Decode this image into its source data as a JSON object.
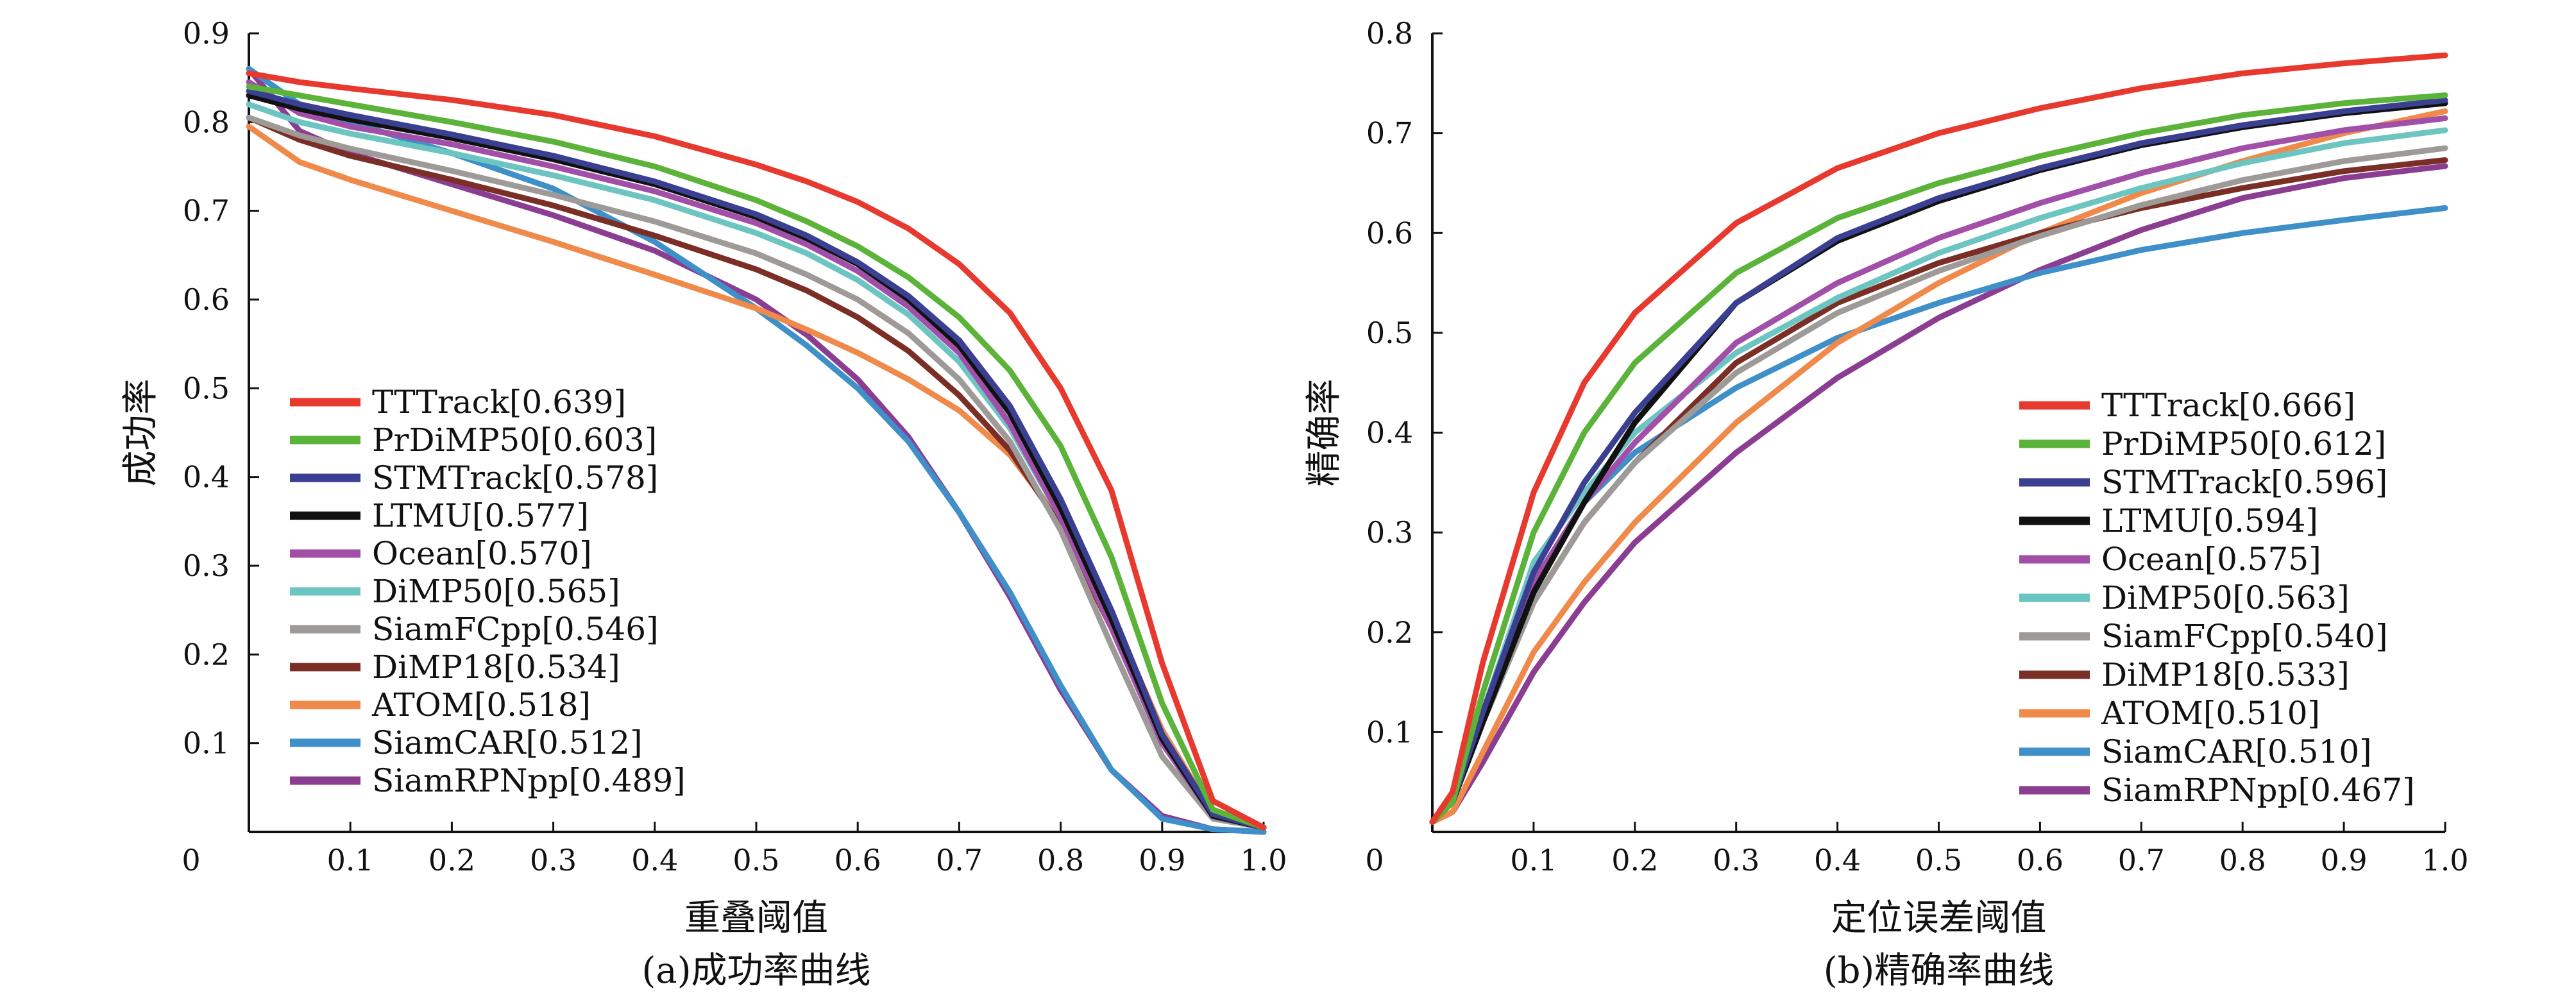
{
  "figure": {
    "panels": [
      {
        "caption": "(a)成功率曲线"
      },
      {
        "caption": "(b)精确率曲线"
      }
    ]
  },
  "chart_data": [
    {
      "type": "line",
      "title": "",
      "caption": "(a)成功率曲线",
      "xlabel": "重叠阈值",
      "ylabel": "成功率",
      "xlim": [
        0,
        1.0
      ],
      "ylim": [
        0,
        0.9
      ],
      "origin_label": "0",
      "xticks": [
        0.1,
        0.2,
        0.3,
        0.4,
        0.5,
        0.6,
        0.7,
        0.8,
        0.9,
        1.0
      ],
      "xtick_labels": [
        "0.1",
        "0.2",
        "0.3",
        "0.4",
        "0.5",
        "0.6",
        "0.7",
        "0.8",
        "0.9",
        "1.0"
      ],
      "yticks": [
        0.1,
        0.2,
        0.3,
        0.4,
        0.5,
        0.6,
        0.7,
        0.8,
        0.9
      ],
      "ytick_labels": [
        "0.1",
        "0.2",
        "0.3",
        "0.4",
        "0.5",
        "0.6",
        "0.7",
        "0.8",
        "0.9"
      ],
      "grid": false,
      "legend_position": "lower-left",
      "series": [
        {
          "name": "TTTrack[0.639]",
          "color": "#e8392f",
          "x": [
            0,
            0.05,
            0.1,
            0.2,
            0.3,
            0.4,
            0.5,
            0.55,
            0.6,
            0.65,
            0.7,
            0.75,
            0.8,
            0.85,
            0.9,
            0.95,
            1.0
          ],
          "y": [
            0.855,
            0.845,
            0.838,
            0.825,
            0.808,
            0.784,
            0.752,
            0.733,
            0.71,
            0.68,
            0.64,
            0.585,
            0.5,
            0.385,
            0.19,
            0.035,
            0.005
          ]
        },
        {
          "name": "PrDiMP50[0.603]",
          "color": "#5bb33a",
          "x": [
            0,
            0.05,
            0.1,
            0.2,
            0.3,
            0.4,
            0.5,
            0.55,
            0.6,
            0.65,
            0.7,
            0.75,
            0.8,
            0.85,
            0.9,
            0.95,
            1.0
          ],
          "y": [
            0.84,
            0.83,
            0.82,
            0.8,
            0.778,
            0.75,
            0.712,
            0.688,
            0.66,
            0.625,
            0.58,
            0.52,
            0.435,
            0.31,
            0.145,
            0.025,
            0.005
          ]
        },
        {
          "name": "STMTrack[0.578]",
          "color": "#3a3f91",
          "x": [
            0,
            0.05,
            0.1,
            0.2,
            0.3,
            0.4,
            0.5,
            0.55,
            0.6,
            0.65,
            0.7,
            0.75,
            0.8,
            0.85,
            0.9,
            0.95,
            1.0
          ],
          "y": [
            0.835,
            0.82,
            0.808,
            0.786,
            0.762,
            0.733,
            0.696,
            0.672,
            0.642,
            0.604,
            0.554,
            0.48,
            0.375,
            0.25,
            0.11,
            0.02,
            0.005
          ]
        },
        {
          "name": "LTMU[0.577]",
          "color": "#111111",
          "x": [
            0,
            0.05,
            0.1,
            0.2,
            0.3,
            0.4,
            0.5,
            0.55,
            0.6,
            0.65,
            0.7,
            0.75,
            0.8,
            0.85,
            0.9,
            0.95,
            1.0
          ],
          "y": [
            0.83,
            0.815,
            0.803,
            0.782,
            0.758,
            0.73,
            0.693,
            0.669,
            0.64,
            0.6,
            0.548,
            0.472,
            0.365,
            0.24,
            0.105,
            0.018,
            0.005
          ]
        },
        {
          "name": "Ocean[0.570]",
          "color": "#a14fa8",
          "x": [
            0,
            0.05,
            0.1,
            0.2,
            0.3,
            0.4,
            0.5,
            0.55,
            0.6,
            0.65,
            0.7,
            0.75,
            0.8,
            0.85,
            0.9,
            0.95,
            1.0
          ],
          "y": [
            0.845,
            0.81,
            0.795,
            0.775,
            0.75,
            0.722,
            0.686,
            0.662,
            0.632,
            0.592,
            0.54,
            0.46,
            0.355,
            0.23,
            0.1,
            0.018,
            0.005
          ]
        },
        {
          "name": "DiMP50[0.565]",
          "color": "#6cc5c1",
          "x": [
            0,
            0.05,
            0.1,
            0.2,
            0.3,
            0.4,
            0.5,
            0.55,
            0.6,
            0.65,
            0.7,
            0.75,
            0.8,
            0.85,
            0.9,
            0.95,
            1.0
          ],
          "y": [
            0.82,
            0.8,
            0.787,
            0.765,
            0.74,
            0.712,
            0.675,
            0.652,
            0.622,
            0.583,
            0.53,
            0.455,
            0.355,
            0.23,
            0.1,
            0.018,
            0.005
          ]
        },
        {
          "name": "SiamFCpp[0.546]",
          "color": "#9e9a98",
          "x": [
            0,
            0.05,
            0.1,
            0.2,
            0.3,
            0.4,
            0.5,
            0.55,
            0.6,
            0.65,
            0.7,
            0.75,
            0.8,
            0.85,
            0.9,
            0.95,
            1.0
          ],
          "y": [
            0.805,
            0.785,
            0.77,
            0.745,
            0.718,
            0.688,
            0.652,
            0.628,
            0.6,
            0.562,
            0.51,
            0.44,
            0.34,
            0.21,
            0.085,
            0.015,
            0.005
          ]
        },
        {
          "name": "DiMP18[0.534]",
          "color": "#7a2e26",
          "x": [
            0,
            0.05,
            0.1,
            0.2,
            0.3,
            0.4,
            0.5,
            0.55,
            0.6,
            0.65,
            0.7,
            0.75,
            0.8,
            0.85,
            0.9,
            0.95,
            1.0
          ],
          "y": [
            0.805,
            0.78,
            0.762,
            0.735,
            0.706,
            0.672,
            0.634,
            0.61,
            0.58,
            0.542,
            0.492,
            0.43,
            0.345,
            0.23,
            0.105,
            0.02,
            0.005
          ]
        },
        {
          "name": "ATOM[0.518]",
          "color": "#f08a4b",
          "x": [
            0,
            0.05,
            0.1,
            0.2,
            0.3,
            0.4,
            0.5,
            0.55,
            0.6,
            0.65,
            0.7,
            0.75,
            0.8,
            0.85,
            0.9,
            0.95,
            1.0
          ],
          "y": [
            0.795,
            0.755,
            0.735,
            0.7,
            0.665,
            0.628,
            0.59,
            0.566,
            0.54,
            0.51,
            0.475,
            0.425,
            0.35,
            0.245,
            0.115,
            0.02,
            0.005
          ]
        },
        {
          "name": "SiamCAR[0.512]",
          "color": "#3f8fc9",
          "x": [
            0,
            0.05,
            0.1,
            0.2,
            0.3,
            0.4,
            0.5,
            0.55,
            0.6,
            0.65,
            0.7,
            0.75,
            0.8,
            0.85,
            0.9,
            0.95,
            1.0
          ],
          "y": [
            0.86,
            0.82,
            0.8,
            0.765,
            0.725,
            0.665,
            0.59,
            0.548,
            0.5,
            0.44,
            0.36,
            0.27,
            0.165,
            0.07,
            0.015,
            0.003,
            0.0
          ]
        },
        {
          "name": "SiamRPNpp[0.489]",
          "color": "#8b3d92",
          "x": [
            0,
            0.05,
            0.1,
            0.2,
            0.3,
            0.4,
            0.5,
            0.55,
            0.6,
            0.65,
            0.7,
            0.75,
            0.8,
            0.85,
            0.9,
            0.95,
            1.0
          ],
          "y": [
            0.86,
            0.79,
            0.765,
            0.73,
            0.695,
            0.655,
            0.6,
            0.56,
            0.51,
            0.445,
            0.36,
            0.265,
            0.16,
            0.07,
            0.018,
            0.003,
            0.0
          ]
        }
      ]
    },
    {
      "type": "line",
      "title": "",
      "caption": "(b)精确率曲线",
      "xlabel": "定位误差阈值",
      "ylabel": "精确率",
      "xlim": [
        0,
        1.0
      ],
      "ylim": [
        0,
        0.8
      ],
      "origin_label": "0",
      "xticks": [
        0.1,
        0.2,
        0.3,
        0.4,
        0.5,
        0.6,
        0.7,
        0.8,
        0.9,
        1.0
      ],
      "xtick_labels": [
        "0.1",
        "0.2",
        "0.3",
        "0.4",
        "0.5",
        "0.6",
        "0.7",
        "0.8",
        "0.9",
        "1.0"
      ],
      "yticks": [
        0.1,
        0.2,
        0.3,
        0.4,
        0.5,
        0.6,
        0.7,
        0.8
      ],
      "ytick_labels": [
        "0.1",
        "0.2",
        "0.3",
        "0.4",
        "0.5",
        "0.6",
        "0.7",
        "0.8"
      ],
      "grid": false,
      "legend_position": "lower-right",
      "series": [
        {
          "name": "TTTrack[0.666]",
          "color": "#e8392f",
          "x": [
            0,
            0.02,
            0.05,
            0.1,
            0.15,
            0.2,
            0.3,
            0.4,
            0.5,
            0.6,
            0.7,
            0.8,
            0.9,
            1.0
          ],
          "y": [
            0.01,
            0.04,
            0.17,
            0.34,
            0.45,
            0.52,
            0.61,
            0.665,
            0.7,
            0.725,
            0.745,
            0.76,
            0.77,
            0.778
          ]
        },
        {
          "name": "PrDiMP50[0.612]",
          "color": "#5bb33a",
          "x": [
            0,
            0.02,
            0.05,
            0.1,
            0.15,
            0.2,
            0.3,
            0.4,
            0.5,
            0.6,
            0.7,
            0.8,
            0.9,
            1.0
          ],
          "y": [
            0.01,
            0.03,
            0.14,
            0.3,
            0.4,
            0.47,
            0.56,
            0.615,
            0.65,
            0.677,
            0.7,
            0.718,
            0.73,
            0.738
          ]
        },
        {
          "name": "STMTrack[0.596]",
          "color": "#3a3f91",
          "x": [
            0,
            0.02,
            0.05,
            0.1,
            0.15,
            0.2,
            0.3,
            0.4,
            0.5,
            0.6,
            0.7,
            0.8,
            0.9,
            1.0
          ],
          "y": [
            0.01,
            0.03,
            0.12,
            0.26,
            0.35,
            0.42,
            0.53,
            0.595,
            0.635,
            0.665,
            0.69,
            0.708,
            0.722,
            0.733
          ]
        },
        {
          "name": "LTMU[0.594]",
          "color": "#111111",
          "x": [
            0,
            0.02,
            0.05,
            0.1,
            0.15,
            0.2,
            0.3,
            0.4,
            0.5,
            0.6,
            0.7,
            0.8,
            0.9,
            1.0
          ],
          "y": [
            0.01,
            0.03,
            0.11,
            0.24,
            0.33,
            0.41,
            0.53,
            0.592,
            0.632,
            0.663,
            0.688,
            0.706,
            0.72,
            0.73
          ]
        },
        {
          "name": "Ocean[0.575]",
          "color": "#a14fa8",
          "x": [
            0,
            0.02,
            0.05,
            0.1,
            0.15,
            0.2,
            0.3,
            0.4,
            0.5,
            0.6,
            0.7,
            0.8,
            0.9,
            1.0
          ],
          "y": [
            0.01,
            0.03,
            0.12,
            0.25,
            0.33,
            0.39,
            0.49,
            0.55,
            0.595,
            0.63,
            0.66,
            0.685,
            0.703,
            0.715
          ]
        },
        {
          "name": "DiMP50[0.563]",
          "color": "#6cc5c1",
          "x": [
            0,
            0.02,
            0.05,
            0.1,
            0.15,
            0.2,
            0.3,
            0.4,
            0.5,
            0.6,
            0.7,
            0.8,
            0.9,
            1.0
          ],
          "y": [
            0.01,
            0.03,
            0.12,
            0.27,
            0.34,
            0.4,
            0.48,
            0.535,
            0.58,
            0.615,
            0.645,
            0.67,
            0.69,
            0.703
          ]
        },
        {
          "name": "SiamFCpp[0.540]",
          "color": "#9e9a98",
          "x": [
            0,
            0.02,
            0.05,
            0.1,
            0.15,
            0.2,
            0.3,
            0.4,
            0.5,
            0.6,
            0.7,
            0.8,
            0.9,
            1.0
          ],
          "y": [
            0.01,
            0.03,
            0.11,
            0.23,
            0.31,
            0.37,
            0.46,
            0.52,
            0.562,
            0.597,
            0.628,
            0.653,
            0.672,
            0.685
          ]
        },
        {
          "name": "DiMP18[0.533]",
          "color": "#7a2e26",
          "x": [
            0,
            0.02,
            0.05,
            0.1,
            0.15,
            0.2,
            0.3,
            0.4,
            0.5,
            0.6,
            0.7,
            0.8,
            0.9,
            1.0
          ],
          "y": [
            0.01,
            0.03,
            0.11,
            0.23,
            0.31,
            0.37,
            0.47,
            0.53,
            0.57,
            0.6,
            0.625,
            0.645,
            0.662,
            0.673
          ]
        },
        {
          "name": "ATOM[0.510]",
          "color": "#f08a4b",
          "x": [
            0,
            0.02,
            0.05,
            0.1,
            0.15,
            0.2,
            0.3,
            0.4,
            0.5,
            0.6,
            0.7,
            0.8,
            0.9,
            1.0
          ],
          "y": [
            0.01,
            0.02,
            0.08,
            0.18,
            0.25,
            0.31,
            0.41,
            0.49,
            0.55,
            0.6,
            0.64,
            0.672,
            0.7,
            0.722
          ]
        },
        {
          "name": "SiamCAR[0.510]",
          "color": "#3f8fc9",
          "x": [
            0,
            0.02,
            0.05,
            0.1,
            0.15,
            0.2,
            0.3,
            0.4,
            0.5,
            0.6,
            0.7,
            0.8,
            0.9,
            1.0
          ],
          "y": [
            0.01,
            0.03,
            0.12,
            0.25,
            0.33,
            0.38,
            0.445,
            0.495,
            0.53,
            0.56,
            0.583,
            0.6,
            0.613,
            0.625
          ]
        },
        {
          "name": "SiamRPNpp[0.467]",
          "color": "#8b3d92",
          "x": [
            0,
            0.02,
            0.05,
            0.1,
            0.15,
            0.2,
            0.3,
            0.4,
            0.5,
            0.6,
            0.7,
            0.8,
            0.9,
            1.0
          ],
          "y": [
            0.01,
            0.02,
            0.07,
            0.16,
            0.23,
            0.29,
            0.38,
            0.455,
            0.515,
            0.563,
            0.603,
            0.635,
            0.655,
            0.667
          ]
        }
      ]
    }
  ]
}
